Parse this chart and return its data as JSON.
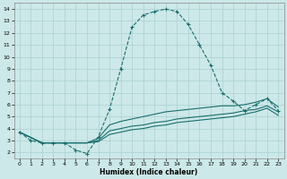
{
  "xlabel": "Humidex (Indice chaleur)",
  "background_color": "#cce8e8",
  "grid_color": "#aad0d0",
  "line_color": "#1a6e6e",
  "xlim": [
    -0.5,
    23.5
  ],
  "ylim": [
    1.5,
    14.5
  ],
  "xticks": [
    0,
    1,
    2,
    3,
    4,
    5,
    6,
    7,
    8,
    9,
    10,
    11,
    12,
    13,
    14,
    15,
    16,
    17,
    18,
    19,
    20,
    21,
    22,
    23
  ],
  "yticks": [
    2,
    3,
    4,
    5,
    6,
    7,
    8,
    9,
    10,
    11,
    12,
    13,
    14
  ],
  "series": [
    {
      "x": [
        0,
        1,
        2,
        3,
        4,
        5,
        6,
        7,
        8,
        9,
        10,
        11,
        12,
        13,
        14,
        15,
        16,
        17,
        18,
        19,
        20,
        21,
        22,
        23
      ],
      "y": [
        3.7,
        3.0,
        2.8,
        2.8,
        2.8,
        2.2,
        1.9,
        3.3,
        5.6,
        9.0,
        12.5,
        13.5,
        13.8,
        14.0,
        13.8,
        12.7,
        11.0,
        9.3,
        7.0,
        6.3,
        5.5,
        6.0,
        6.5,
        5.5
      ],
      "marker": "+",
      "linestyle": "--",
      "linewidth": 0.8,
      "markersize": 3.5
    },
    {
      "x": [
        0,
        2,
        6,
        7,
        8,
        9,
        10,
        11,
        12,
        13,
        14,
        15,
        16,
        17,
        18,
        19,
        20,
        21,
        22,
        23
      ],
      "y": [
        3.7,
        2.8,
        2.8,
        3.2,
        4.3,
        4.6,
        4.8,
        5.0,
        5.2,
        5.4,
        5.5,
        5.6,
        5.7,
        5.8,
        5.9,
        5.9,
        6.0,
        6.2,
        6.5,
        5.8
      ],
      "marker": null,
      "linestyle": "-",
      "linewidth": 0.8,
      "markersize": 0
    },
    {
      "x": [
        0,
        2,
        6,
        7,
        8,
        9,
        10,
        11,
        12,
        13,
        14,
        15,
        16,
        17,
        18,
        19,
        20,
        21,
        22,
        23
      ],
      "y": [
        3.7,
        2.8,
        2.8,
        3.0,
        3.8,
        4.0,
        4.2,
        4.3,
        4.5,
        4.6,
        4.8,
        4.9,
        5.0,
        5.1,
        5.2,
        5.3,
        5.5,
        5.6,
        5.9,
        5.4
      ],
      "marker": null,
      "linestyle": "-",
      "linewidth": 0.8,
      "markersize": 0
    },
    {
      "x": [
        0,
        2,
        6,
        7,
        8,
        9,
        10,
        11,
        12,
        13,
        14,
        15,
        16,
        17,
        18,
        19,
        20,
        21,
        22,
        23
      ],
      "y": [
        3.7,
        2.8,
        2.8,
        2.9,
        3.5,
        3.7,
        3.9,
        4.0,
        4.2,
        4.3,
        4.5,
        4.6,
        4.7,
        4.8,
        4.9,
        5.0,
        5.2,
        5.4,
        5.7,
        5.1
      ],
      "marker": null,
      "linestyle": "-",
      "linewidth": 0.8,
      "markersize": 0
    }
  ]
}
